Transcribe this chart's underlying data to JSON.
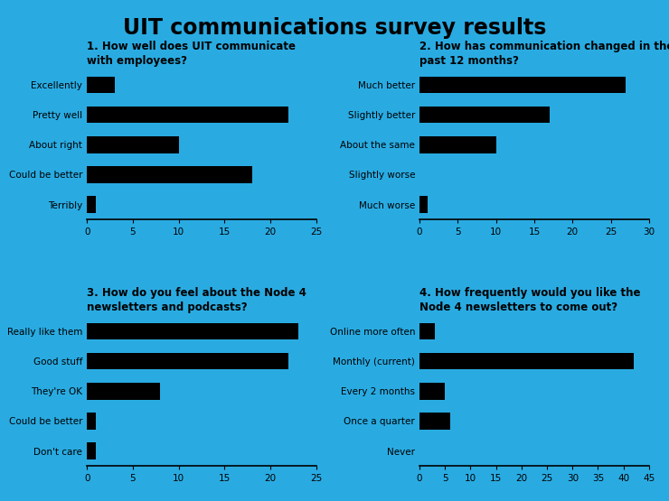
{
  "title": "UIT communications survey results",
  "background_color": "#29ABE2",
  "bar_color": "#000000",
  "q1": {
    "question": "1. How well does UIT communicate\nwith employees?",
    "categories": [
      "Excellently",
      "Pretty well",
      "About right",
      "Could be better",
      "Terribly"
    ],
    "values": [
      3,
      22,
      10,
      18,
      1
    ],
    "xlim": [
      0,
      25
    ],
    "xticks": [
      0,
      5,
      10,
      15,
      20,
      25
    ]
  },
  "q2": {
    "question": "2. How has communication changed in the\npast 12 months?",
    "categories": [
      "Much better",
      "Slightly better",
      "About the same",
      "Slightly worse",
      "Much worse"
    ],
    "values": [
      27,
      17,
      10,
      0,
      1
    ],
    "xlim": [
      0,
      30
    ],
    "xticks": [
      0,
      5,
      10,
      15,
      20,
      25,
      30
    ]
  },
  "q3": {
    "question": "3. How do you feel about the Node 4\nnewsletters and podcasts?",
    "categories": [
      "Really like them",
      "Good stuff",
      "They're OK",
      "Could be better",
      "Don't care"
    ],
    "values": [
      23,
      22,
      8,
      1,
      1
    ],
    "xlim": [
      0,
      25
    ],
    "xticks": [
      0,
      5,
      10,
      15,
      20,
      25
    ]
  },
  "q4": {
    "question": "4. How frequently would you like the\nNode 4 newsletters to come out?",
    "categories": [
      "Online more often",
      "Monthly (current)",
      "Every 2 months",
      "Once a quarter",
      "Never"
    ],
    "values": [
      3,
      42,
      5,
      6,
      0
    ],
    "xlim": [
      0,
      45
    ],
    "xticks": [
      0,
      5,
      10,
      15,
      20,
      25,
      30,
      35,
      40,
      45
    ]
  }
}
